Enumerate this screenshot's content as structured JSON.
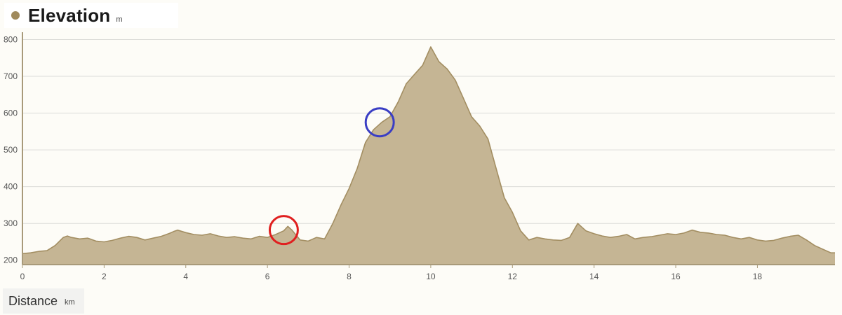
{
  "header": {
    "title": "Elevation",
    "unit": "m"
  },
  "footer": {
    "label": "Distance",
    "unit": "km"
  },
  "colors": {
    "accent": "#a08a5c",
    "fill": "#c5b594",
    "line": "#a38e62",
    "grid": "#dcdcd8",
    "marker_red": "#e01f1f",
    "marker_blue": "#3a3ec4"
  },
  "chart_data": {
    "type": "area",
    "title": "Elevation",
    "xlabel": "Distance",
    "ylabel": "",
    "x_unit": "km",
    "y_unit": "m",
    "xlim": [
      0,
      19.9
    ],
    "ylim": [
      190,
      820
    ],
    "x_ticks": [
      0,
      2,
      4,
      6,
      8,
      10,
      12,
      14,
      16,
      18
    ],
    "y_ticks": [
      200,
      300,
      400,
      500,
      600,
      700,
      800
    ],
    "grid": true,
    "legend": "none",
    "series": [
      {
        "x": [
          0,
          0.2,
          0.4,
          0.6,
          0.8,
          1.0,
          1.1,
          1.2,
          1.4,
          1.6,
          1.8,
          2.0,
          2.2,
          2.4,
          2.6,
          2.8,
          3.0,
          3.2,
          3.4,
          3.6,
          3.7,
          3.8,
          4.0,
          4.2,
          4.4,
          4.6,
          4.8,
          5.0,
          5.2,
          5.4,
          5.6,
          5.8,
          6.0,
          6.2,
          6.4,
          6.5,
          6.6,
          6.8,
          7.0,
          7.2,
          7.4,
          7.6,
          7.8,
          8.0,
          8.2,
          8.4,
          8.6,
          8.8,
          9.0,
          9.2,
          9.4,
          9.6,
          9.8,
          10.0,
          10.2,
          10.4,
          10.6,
          10.8,
          11.0,
          11.2,
          11.4,
          11.6,
          11.8,
          12.0,
          12.2,
          12.4,
          12.6,
          12.8,
          13.0,
          13.2,
          13.4,
          13.6,
          13.8,
          14.0,
          14.2,
          14.4,
          14.6,
          14.8,
          15.0,
          15.2,
          15.4,
          15.6,
          15.8,
          16.0,
          16.2,
          16.4,
          16.6,
          16.8,
          17.0,
          17.2,
          17.4,
          17.6,
          17.8,
          18.0,
          18.2,
          18.4,
          18.6,
          18.8,
          19.0,
          19.2,
          19.4,
          19.6,
          19.8,
          19.9
        ],
        "values": [
          218,
          220,
          224,
          226,
          240,
          262,
          266,
          262,
          258,
          260,
          252,
          250,
          254,
          260,
          265,
          262,
          255,
          260,
          265,
          273,
          278,
          282,
          275,
          270,
          268,
          272,
          266,
          262,
          264,
          260,
          258,
          265,
          262,
          270,
          280,
          292,
          282,
          255,
          252,
          262,
          258,
          300,
          350,
          395,
          450,
          520,
          555,
          575,
          590,
          630,
          680,
          705,
          730,
          780,
          740,
          720,
          690,
          640,
          590,
          565,
          530,
          450,
          370,
          330,
          280,
          255,
          262,
          258,
          255,
          254,
          262,
          300,
          280,
          272,
          266,
          262,
          265,
          270,
          258,
          262,
          264,
          268,
          272,
          270,
          274,
          282,
          276,
          274,
          270,
          268,
          262,
          258,
          262,
          255,
          252,
          254,
          260,
          265,
          268,
          255,
          240,
          230,
          220,
          220
        ]
      }
    ],
    "markers": [
      {
        "shape": "circle",
        "color": "red",
        "x": 6.4,
        "y": 282
      },
      {
        "shape": "circle",
        "color": "blue",
        "x": 8.75,
        "y": 575
      }
    ]
  }
}
